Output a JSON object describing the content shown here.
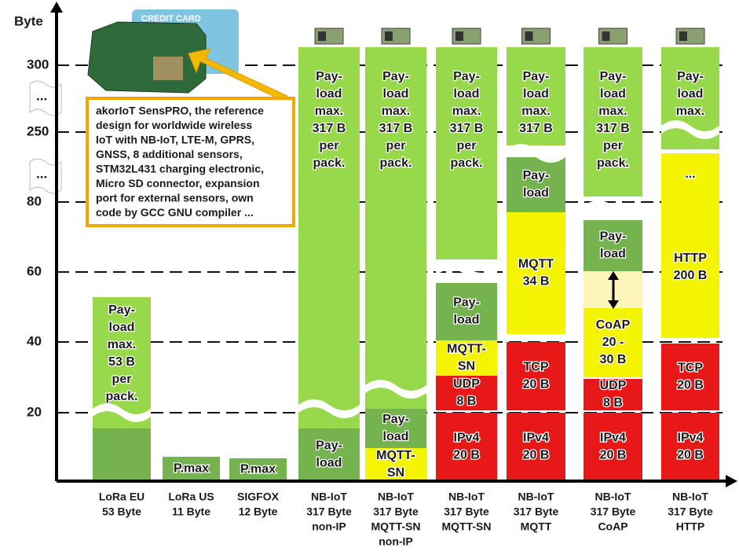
{
  "axis": {
    "unit": "Byte",
    "ticks": [
      "300",
      "250",
      "80",
      "60",
      "40",
      "20"
    ],
    "breaks": [
      "...",
      "..."
    ]
  },
  "card": {
    "label": "CREDIT CARD"
  },
  "callout": {
    "lines": [
      "akorIoT SensPRO, the reference",
      "design for worldwide wireless",
      "IoT with NB-IoT, LTE-M, GPRS,",
      "GNSS, 8 additional sensors,",
      "STM32L431 charging electronic,",
      "Micro SD connector, expansion",
      "port for external sensors, own",
      "code by GCC GNU compiler ..."
    ]
  },
  "columns": [
    {
      "label": [
        "LoRa EU",
        "53 Byte"
      ],
      "blocks": [
        {
          "lines": [
            "Pay-",
            "load",
            "max.",
            "53 B",
            "per",
            "pack."
          ]
        }
      ]
    },
    {
      "label": [
        "LoRa US",
        "11 Byte"
      ],
      "blocks": [
        {
          "lines": [
            "P.max"
          ]
        }
      ]
    },
    {
      "label": [
        "SIGFOX",
        "12 Byte"
      ],
      "blocks": [
        {
          "lines": [
            "P.max"
          ]
        }
      ]
    },
    {
      "label": [
        "NB-IoT",
        "317 Byte",
        "non-IP"
      ],
      "blocks": [
        {
          "lines": [
            "Pay-",
            "load",
            "max.",
            "317 B",
            "per",
            "pack."
          ]
        },
        {
          "lines": [
            "Pay-",
            "load"
          ]
        }
      ]
    },
    {
      "label": [
        "NB-IoT",
        "317 Byte",
        "MQTT-SN",
        "non-IP"
      ],
      "blocks": [
        {
          "lines": [
            "Pay-",
            "load",
            "max.",
            "317 B",
            "per",
            "pack."
          ]
        },
        {
          "lines": [
            "Pay-",
            "load"
          ]
        },
        {
          "lines": [
            "MQTT-",
            "SN"
          ]
        }
      ]
    },
    {
      "label": [
        "NB-IoT",
        "317 Byte",
        "MQTT-SN"
      ],
      "blocks": [
        {
          "lines": [
            "Pay-",
            "load",
            "max.",
            "317 B",
            "per",
            "pack."
          ]
        },
        {
          "lines": [
            "Pay-",
            "load"
          ]
        },
        {
          "lines": [
            "MQTT-",
            "SN"
          ]
        },
        {
          "lines": [
            "UDP",
            "8 B"
          ]
        },
        {
          "lines": [
            "IPv4",
            "20 B"
          ]
        }
      ]
    },
    {
      "label": [
        "NB-IoT",
        "317 Byte",
        "MQTT"
      ],
      "blocks": [
        {
          "lines": [
            "Pay-",
            "load",
            "max.",
            "317 B"
          ]
        },
        {
          "lines": [
            "Pay-",
            "load"
          ]
        },
        {
          "lines": [
            "MQTT",
            "34 B"
          ]
        },
        {
          "lines": [
            "TCP",
            "20 B"
          ]
        },
        {
          "lines": [
            "IPv4",
            "20 B"
          ]
        }
      ]
    },
    {
      "label": [
        "NB-IoT",
        "317 Byte",
        "CoAP"
      ],
      "blocks": [
        {
          "lines": [
            "Pay-",
            "load",
            "max.",
            "317 B",
            "per",
            "pack."
          ]
        },
        {
          "lines": [
            "Pay-",
            "load"
          ]
        },
        {
          "lines": [
            "CoAP",
            "20 -",
            "30 B"
          ]
        },
        {
          "lines": [
            "UDP",
            "8 B"
          ]
        },
        {
          "lines": [
            "IPv4",
            "20 B"
          ]
        }
      ]
    },
    {
      "label": [
        "NB-IoT",
        "317 Byte",
        "HTTP"
      ],
      "blocks": [
        {
          "lines": [
            "Pay-",
            "load",
            "max."
          ]
        },
        {
          "lines": [
            "..."
          ]
        },
        {
          "lines": [
            "HTTP",
            "200 B"
          ]
        },
        {
          "lines": [
            "TCP",
            "20 B"
          ]
        },
        {
          "lines": [
            "IPv4",
            "20 B"
          ]
        }
      ]
    }
  ]
}
